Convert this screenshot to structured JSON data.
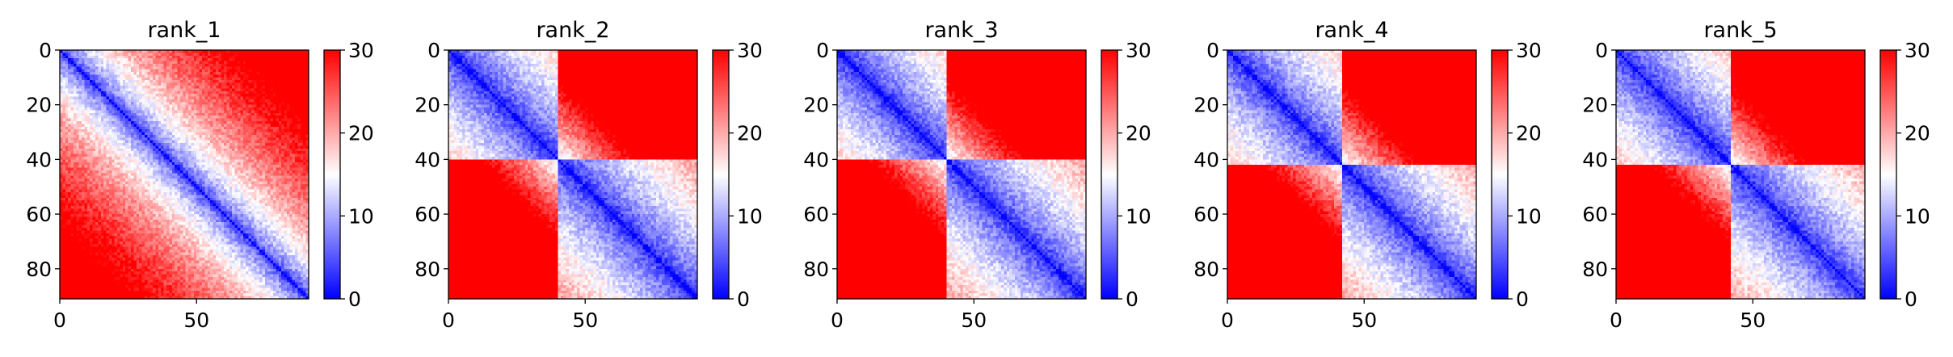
{
  "chart_data": [
    {
      "type": "heatmap",
      "title": "rank_1",
      "n": 91,
      "x_ticks": [
        0,
        50
      ],
      "y_ticks": [
        0,
        20,
        40,
        60,
        80
      ],
      "color_range": [
        0,
        30
      ],
      "colorbar_ticks": [
        0,
        10,
        20,
        30
      ],
      "colormap": "bwr",
      "domain_break": null,
      "description": "pairwise distance matrix, low near diagonal, high far from diagonal"
    },
    {
      "type": "heatmap",
      "title": "rank_2",
      "n": 91,
      "x_ticks": [
        0,
        50
      ],
      "y_ticks": [
        0,
        20,
        40,
        60,
        80
      ],
      "color_range": [
        0,
        30
      ],
      "colorbar_ticks": [
        0,
        10,
        20,
        30
      ],
      "colormap": "bwr",
      "domain_break": 40,
      "description": "two blue blocks meeting at ~40"
    },
    {
      "type": "heatmap",
      "title": "rank_3",
      "n": 91,
      "x_ticks": [
        0,
        50
      ],
      "y_ticks": [
        0,
        20,
        40,
        60,
        80
      ],
      "color_range": [
        0,
        30
      ],
      "colorbar_ticks": [
        0,
        10,
        20,
        30
      ],
      "colormap": "bwr",
      "domain_break": 40,
      "description": "two blue blocks meeting at ~40"
    },
    {
      "type": "heatmap",
      "title": "rank_4",
      "n": 91,
      "x_ticks": [
        0,
        50
      ],
      "y_ticks": [
        0,
        20,
        40,
        60,
        80
      ],
      "color_range": [
        0,
        30
      ],
      "colorbar_ticks": [
        0,
        10,
        20,
        30
      ],
      "colormap": "bwr",
      "domain_break": 42,
      "description": "two blue blocks meeting at ~42"
    },
    {
      "type": "heatmap",
      "title": "rank_5",
      "n": 91,
      "x_ticks": [
        0,
        50
      ],
      "y_ticks": [
        0,
        20,
        40,
        60,
        80
      ],
      "color_range": [
        0,
        30
      ],
      "colorbar_ticks": [
        0,
        10,
        20,
        30
      ],
      "colormap": "bwr",
      "domain_break": 42,
      "description": "two blue blocks meeting at ~42"
    }
  ],
  "colors": {
    "low": "#0000ff",
    "mid": "#ffffff",
    "high": "#ff0000",
    "axis": "#000000"
  }
}
